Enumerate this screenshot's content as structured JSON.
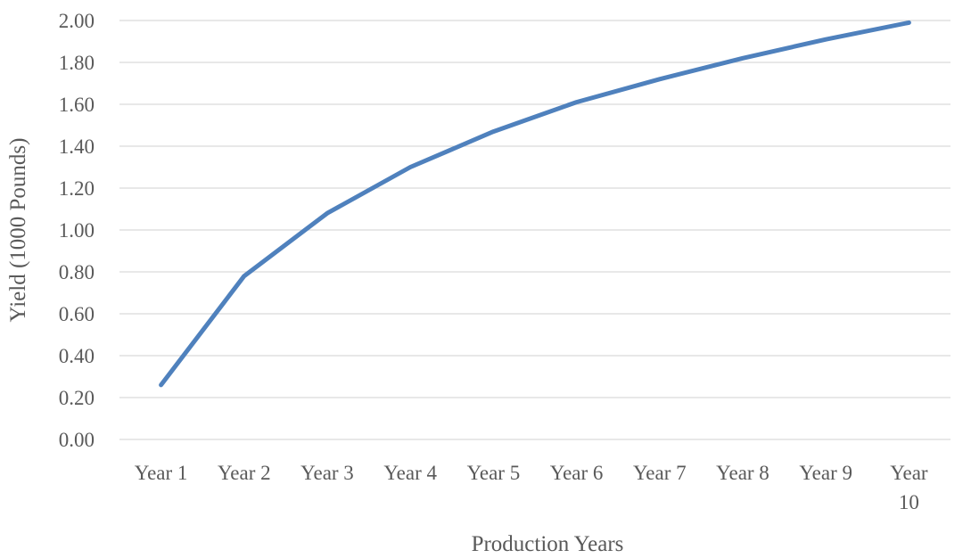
{
  "chart_data": {
    "type": "line",
    "title": "",
    "xlabel": "Production Years",
    "ylabel": "Yield (1000 Pounds)",
    "categories": [
      "Year 1",
      "Year 2",
      "Year 3",
      "Year 4",
      "Year 5",
      "Year 6",
      "Year 7",
      "Year 8",
      "Year 9",
      "Year 10"
    ],
    "series": [
      {
        "values": [
          0.26,
          0.78,
          1.08,
          1.3,
          1.47,
          1.61,
          1.72,
          1.82,
          1.91,
          1.99
        ],
        "color": "#4f81bd"
      }
    ],
    "ylim": [
      0,
      2
    ],
    "yticks": [
      "0.00",
      "0.20",
      "0.40",
      "0.60",
      "0.80",
      "1.00",
      "1.20",
      "1.40",
      "1.60",
      "1.80",
      "2.00"
    ],
    "grid": true,
    "legend": "none"
  }
}
